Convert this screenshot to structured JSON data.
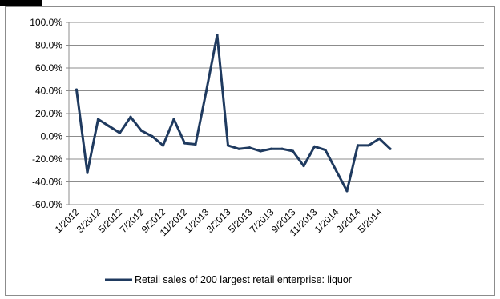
{
  "chart_data": {
    "type": "line",
    "title": "",
    "xlabel": "",
    "ylabel": "",
    "ylim": [
      -60,
      100
    ],
    "y_tick_values": [
      -60,
      -40,
      -20,
      0,
      20,
      40,
      60,
      80,
      100
    ],
    "y_tick_labels": [
      "-60.0%",
      "-40.0%",
      "-20.0%",
      "0.0%",
      "20.0%",
      "40.0%",
      "60.0%",
      "80.0%",
      "100.0%"
    ],
    "grid": true,
    "legend_position": "bottom",
    "x": [
      "1/2012",
      "2/2012",
      "3/2012",
      "4/2012",
      "5/2012",
      "6/2012",
      "7/2012",
      "8/2012",
      "9/2012",
      "10/2012",
      "11/2012",
      "12/2012",
      "1/2013",
      "2/2013",
      "3/2013",
      "4/2013",
      "5/2013",
      "6/2013",
      "7/2013",
      "8/2013",
      "9/2013",
      "10/2013",
      "11/2013",
      "12/2013",
      "1/2014",
      "2/2014",
      "3/2014",
      "4/2014",
      "5/2014",
      "6/2014"
    ],
    "x_tick_labels": [
      "1/2012",
      "3/2012",
      "5/2012",
      "7/2012",
      "9/2012",
      "11/2012",
      "1/2013",
      "3/2013",
      "5/2013",
      "7/2013",
      "9/2013",
      "11/2013",
      "1/2014",
      "3/2014",
      "5/2014"
    ],
    "series": [
      {
        "name": "Retail sales of 200 largest retail enterprise: liquor",
        "color": "#1f3a5f",
        "values": [
          41,
          -32,
          15,
          9,
          3,
          17,
          5,
          0,
          -8,
          15,
          -6,
          -7,
          40,
          89,
          -8,
          -11,
          -10,
          -13,
          -11,
          -11,
          -13,
          -26,
          -9,
          -12,
          -30,
          -48,
          -8,
          -8,
          -2,
          -11
        ]
      }
    ]
  }
}
